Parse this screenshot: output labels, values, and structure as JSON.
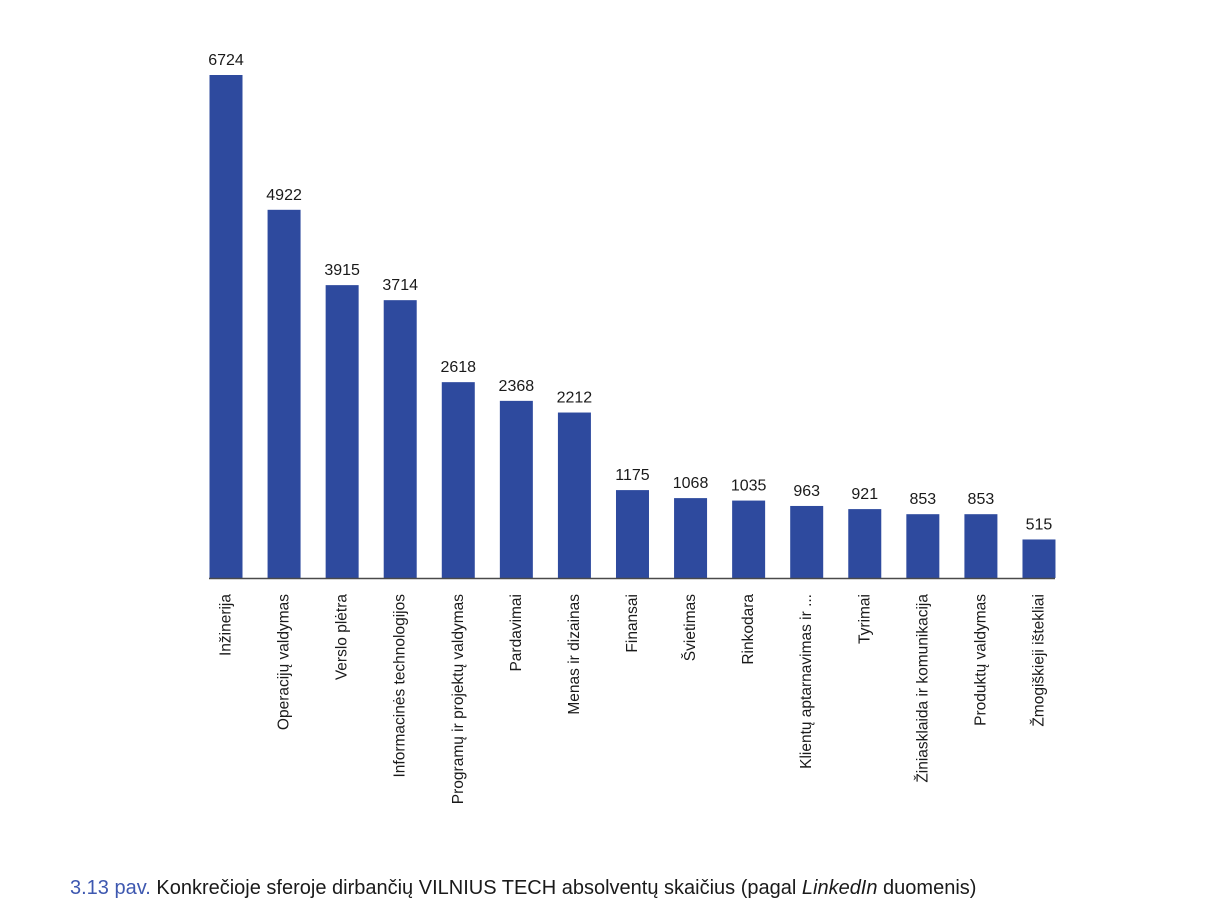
{
  "colors": {
    "bar": "#2e4a9e",
    "axis": "#4a4a4a",
    "text": "#1a1a1a",
    "figure_number": "#3e58b0"
  },
  "chart_data": {
    "type": "bar",
    "orientation": "vertical",
    "title": "",
    "xlabel": "",
    "ylabel": "",
    "ylim": [
      0,
      6724
    ],
    "grid": false,
    "legend": "none",
    "data_labels": "above-bars",
    "categories": [
      "Inžinerija",
      "Operacijų valdymas",
      "Verslo plėtra",
      "Informacinės technologijos",
      "Programų ir projektų valdymas",
      "Pardavimai",
      "Menas ir dizainas",
      "Finansai",
      "Švietimas",
      "Rinkodara",
      "Klientų aptarnavimas ir ...",
      "Tyrimai",
      "Žiniasklaida ir komunikacija",
      "Produktų valdymas",
      "Žmogiškieji ištekliai"
    ],
    "values": [
      6724,
      4922,
      3915,
      3714,
      2618,
      2368,
      2212,
      1175,
      1068,
      1035,
      963,
      921,
      853,
      853,
      515
    ],
    "value_labels": [
      "6724",
      "4922",
      "3915",
      "3714",
      "2618",
      "2368",
      "2212",
      "1175",
      "1068",
      "1035",
      "963",
      "921",
      "853",
      "853",
      "515"
    ]
  },
  "caption": {
    "figure_number": "3.13 pav.",
    "text_before": " Konkrečioje sferoje dirbančių VILNIUS TECH absolventų skaičius (pagal ",
    "text_italic": "LinkedIn",
    "text_after": " duomenis)"
  }
}
